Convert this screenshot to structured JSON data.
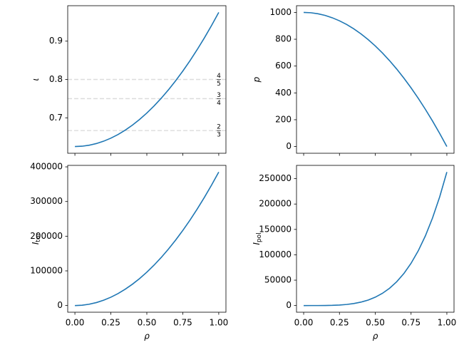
{
  "chart_data": [
    {
      "type": "line",
      "color": "#1f77b4",
      "ylabel": "ι",
      "x": [
        0,
        0.05,
        0.1,
        0.15,
        0.2,
        0.25,
        0.3,
        0.35,
        0.4,
        0.45,
        0.5,
        0.55,
        0.6,
        0.65,
        0.7,
        0.75,
        0.8,
        0.85,
        0.9,
        0.95,
        1
      ],
      "values": [
        0.625,
        0.6259,
        0.6285,
        0.6329,
        0.639,
        0.6469,
        0.6565,
        0.6679,
        0.681,
        0.6959,
        0.7125,
        0.7309,
        0.751,
        0.7729,
        0.7965,
        0.8219,
        0.849,
        0.8779,
        0.9085,
        0.9409,
        0.975
      ],
      "xlim": [
        -0.05,
        1.05
      ],
      "xticks": [
        0,
        0.25,
        0.5,
        0.75,
        1
      ],
      "ylim": [
        0.6075,
        0.9925
      ],
      "yticks": [
        0.7,
        0.8,
        0.9
      ],
      "hlines": [
        {
          "value": 0.8,
          "numerator": "4",
          "denominator": "5"
        },
        {
          "value": 0.75,
          "numerator": "3",
          "denominator": "4"
        },
        {
          "value": 0.6667,
          "numerator": "2",
          "denominator": "3"
        }
      ]
    },
    {
      "type": "line",
      "color": "#1f77b4",
      "ylabel": "p",
      "x": [
        0,
        0.05,
        0.1,
        0.15,
        0.2,
        0.25,
        0.3,
        0.35,
        0.4,
        0.45,
        0.5,
        0.55,
        0.6,
        0.65,
        0.7,
        0.75,
        0.8,
        0.85,
        0.9,
        0.95,
        1
      ],
      "values": [
        1000,
        997.5,
        990,
        977.5,
        960,
        937.5,
        910,
        877.5,
        840,
        797.5,
        750,
        697.5,
        640,
        577.5,
        510,
        437.5,
        360,
        277.5,
        190,
        97.5,
        0
      ],
      "xlim": [
        -0.05,
        1.05
      ],
      "xticks": [
        0,
        0.25,
        0.5,
        0.75,
        1
      ],
      "ylim": [
        -50,
        1050
      ],
      "yticks": [
        0,
        200,
        400,
        600,
        800,
        1000
      ]
    },
    {
      "type": "line",
      "color": "#1f77b4",
      "ylabel": "I",
      "ylabel_subscript": "tor",
      "xlabel": "ρ",
      "x": [
        0,
        0.05,
        0.1,
        0.15,
        0.2,
        0.25,
        0.3,
        0.35,
        0.4,
        0.45,
        0.5,
        0.55,
        0.6,
        0.65,
        0.7,
        0.75,
        0.8,
        0.85,
        0.9,
        0.95,
        1
      ],
      "values": [
        0,
        963,
        3850,
        8663,
        15400,
        24063,
        34650,
        47163,
        61600,
        77963,
        96250,
        116463,
        138600,
        162663,
        188650,
        216563,
        246400,
        278163,
        311850,
        347463,
        385000
      ],
      "xlim": [
        -0.05,
        1.05
      ],
      "xticks": [
        {
          "value": 0,
          "label": "0.00"
        },
        {
          "value": 0.25,
          "label": "0.25"
        },
        {
          "value": 0.5,
          "label": "0.50"
        },
        {
          "value": 0.75,
          "label": "0.75"
        },
        {
          "value": 1,
          "label": "1.00"
        }
      ],
      "ylim": [
        -19250,
        404250
      ],
      "yticks": [
        0,
        100000,
        200000,
        300000,
        400000
      ]
    },
    {
      "type": "line",
      "color": "#1f77b4",
      "ylabel": "I",
      "ylabel_subscript": "pol",
      "xlabel": "ρ",
      "x": [
        0,
        0.05,
        0.1,
        0.15,
        0.2,
        0.25,
        0.3,
        0.35,
        0.4,
        0.45,
        0.5,
        0.55,
        0.6,
        0.65,
        0.7,
        0.75,
        0.8,
        0.85,
        0.9,
        0.95,
        1
      ],
      "values": [
        0,
        2,
        26,
        133,
        421,
        1027,
        2130,
        3947,
        6733,
        10785,
        16438,
        24066,
        34085,
        46947,
        63146,
        83215,
        107725,
        137288,
        172554,
        214215,
        263000
      ],
      "xlim": [
        -0.05,
        1.05
      ],
      "xticks": [
        {
          "value": 0,
          "label": "0.00"
        },
        {
          "value": 0.25,
          "label": "0.25"
        },
        {
          "value": 0.5,
          "label": "0.50"
        },
        {
          "value": 0.75,
          "label": "0.75"
        },
        {
          "value": 1,
          "label": "1.00"
        }
      ],
      "ylim": [
        -13150,
        276150
      ],
      "yticks": [
        0,
        50000,
        100000,
        150000,
        200000,
        250000
      ]
    }
  ]
}
